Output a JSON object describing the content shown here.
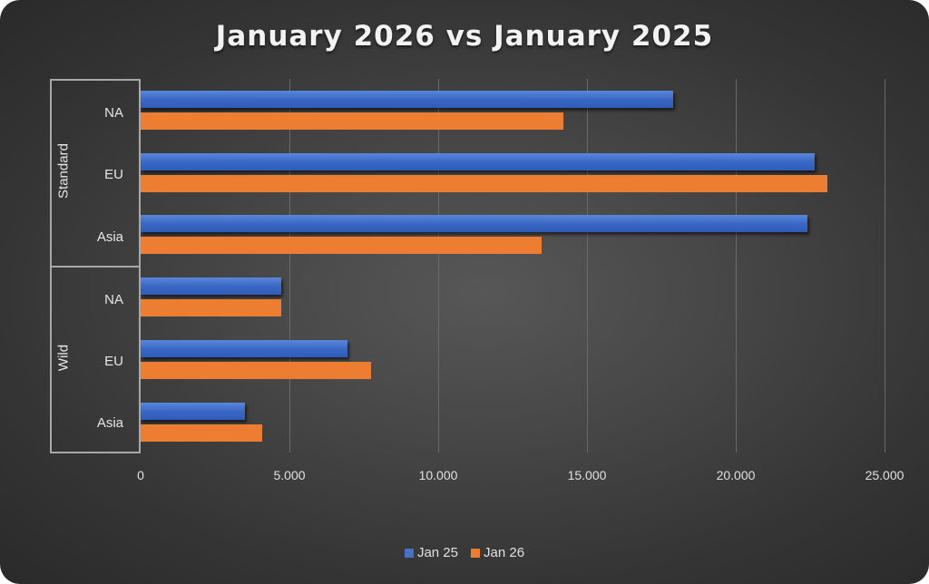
{
  "chart_data": {
    "type": "bar",
    "orientation": "horizontal",
    "title": "January 2026 vs January 2025",
    "xlabel": "",
    "ylabel": "",
    "xlim": [
      0,
      25000
    ],
    "x_ticks": [
      "0",
      "5.000",
      "10.000",
      "15.000",
      "20.000",
      "25.000"
    ],
    "grid": true,
    "legend_position": "bottom",
    "groups": [
      "Standard",
      "Wild"
    ],
    "categories": [
      "Standard / NA",
      "Standard / EU",
      "Standard / Asia",
      "Wild / NA",
      "Wild / EU",
      "Wild / Asia"
    ],
    "category_labels": [
      "NA",
      "EU",
      "Asia",
      "NA",
      "EU",
      "Asia"
    ],
    "series": [
      {
        "name": "Jan 25",
        "color": "#4472c4",
        "values": [
          17900,
          22650,
          22400,
          4730,
          6950,
          3500
        ]
      },
      {
        "name": "Jan 26",
        "color": "#ed7d31",
        "values": [
          14200,
          23080,
          13480,
          4730,
          7740,
          4090
        ]
      }
    ]
  },
  "legend": {
    "items": [
      {
        "label": "Jan 25",
        "color": "#4472c4"
      },
      {
        "label": "Jan 26",
        "color": "#ed7d31"
      }
    ]
  }
}
